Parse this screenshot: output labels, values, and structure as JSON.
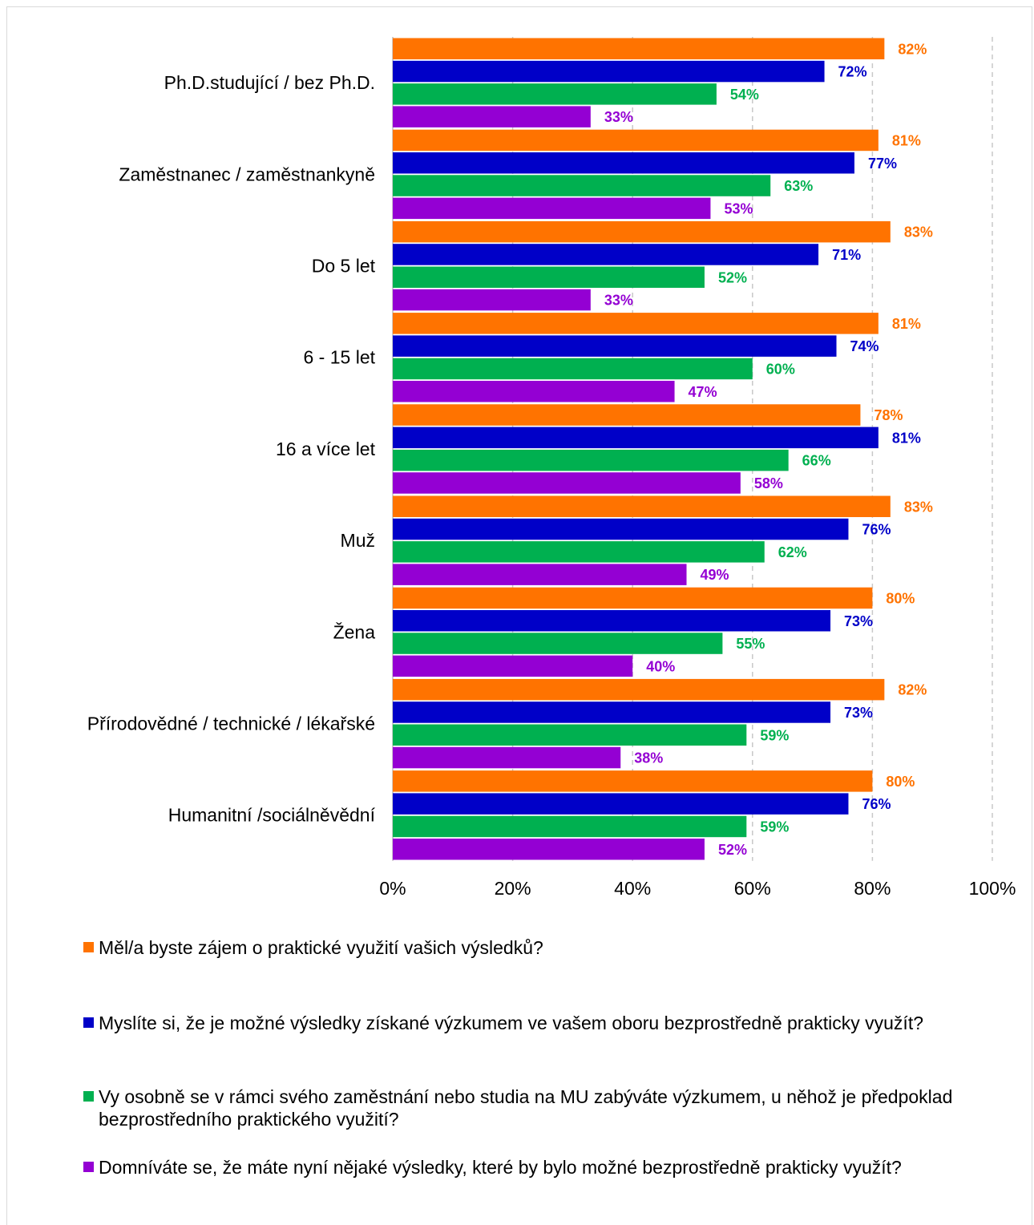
{
  "chart_data": {
    "type": "bar",
    "orientation": "horizontal",
    "categories": [
      "Ph.D.studující / bez Ph.D.",
      "Zaměstnanec / zaměstnankyně",
      "Do 5 let",
      "6 - 15 let",
      "16 a více let",
      "Muž",
      "Žena",
      "Přírodovědné / technické / lékařské",
      "Humanitní /sociálněvědní"
    ],
    "series": [
      {
        "name": "Měl/a byste zájem o praktické využití vašich výsledků?",
        "color": "#ff7300",
        "values": [
          82,
          81,
          83,
          81,
          78,
          83,
          80,
          82,
          80
        ],
        "labels": [
          "82%",
          "81%",
          "83%",
          "81%",
          "78%",
          "83%",
          "80%",
          "82%",
          "80%"
        ]
      },
      {
        "name": "Myslíte si, že je možné výsledky získané výzkumem ve vašem oboru bezprostředně prakticky využít?",
        "color": "#0000c8",
        "values": [
          72,
          77,
          71,
          74,
          81,
          76,
          73,
          73,
          76
        ],
        "labels": [
          "72%",
          "77%",
          "71%",
          "74%",
          "81%",
          "76%",
          "73%",
          "73%",
          "76%"
        ]
      },
      {
        "name": "Vy osobně se v rámci svého zaměstnání nebo studia na MU zabýváte výzkumem, u něhož je předpoklad bezprostředního praktického využití?",
        "color": "#00b050",
        "values": [
          54,
          63,
          52,
          60,
          66,
          62,
          55,
          59,
          59
        ],
        "labels": [
          "54%",
          "63%",
          "52%",
          "60%",
          "66%",
          "62%",
          "55%",
          "59%",
          "59%"
        ]
      },
      {
        "name": "Domníváte se, že máte nyní nějaké výsledky, které by bylo možné bezprostředně prakticky využít?",
        "color": "#9400d3",
        "values": [
          33,
          53,
          33,
          47,
          58,
          49,
          40,
          38,
          52
        ],
        "labels": [
          "33%",
          "53%",
          "33%",
          "47%",
          "58%",
          "49%",
          "40%",
          "38%",
          "52%"
        ]
      }
    ],
    "xlim": [
      0,
      100
    ],
    "xticks": [
      "0%",
      "20%",
      "40%",
      "60%",
      "80%",
      "100%"
    ],
    "grid": true,
    "legend_position": "bottom"
  }
}
